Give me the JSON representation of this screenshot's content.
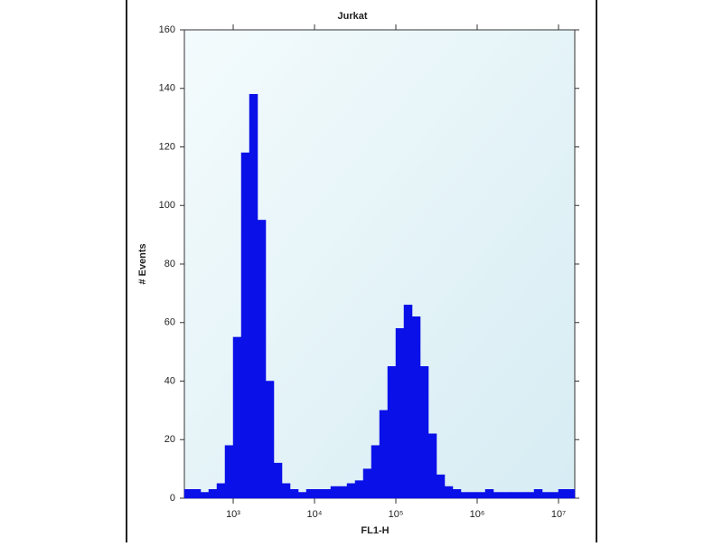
{
  "chart_data": {
    "type": "histogram",
    "title": "Jurkat",
    "x_label": "FL1-H",
    "y_label": "# Events",
    "xscale": "log",
    "color": "#0a10e8",
    "bins": [
      251,
      316,
      398,
      501,
      631,
      794,
      1000,
      1259,
      1585,
      1995,
      2512,
      3162,
      3981,
      5012,
      6310,
      7943,
      10000,
      12589,
      15849,
      19953,
      25119,
      31623,
      39811,
      50119,
      63096,
      79433,
      100000,
      125893,
      158489,
      199526,
      251189,
      316228,
      398107,
      501187,
      630957,
      794328,
      1000000,
      1258925,
      1584893,
      1995262,
      2511886,
      3162278,
      3981072,
      5011872,
      6309573,
      7943282,
      10000000,
      12589254,
      15848932
    ],
    "counts": [
      3,
      3,
      2,
      3,
      5,
      18,
      55,
      118,
      138,
      95,
      40,
      12,
      5,
      3,
      2,
      3,
      3,
      3,
      4,
      4,
      5,
      6,
      10,
      18,
      30,
      45,
      58,
      66,
      62,
      45,
      22,
      8,
      4,
      3,
      2,
      2,
      2,
      3,
      2,
      2,
      2,
      2,
      2,
      3,
      2,
      2,
      3,
      3
    ],
    "xlim": [
      251,
      15848932
    ],
    "xticks": [
      {
        "value": 1000,
        "label": "10³"
      },
      {
        "value": 10000,
        "label": "10⁴"
      },
      {
        "value": 100000,
        "label": "10⁵"
      },
      {
        "value": 1000000,
        "label": "10⁶"
      },
      {
        "value": 10000000,
        "label": "10⁷"
      }
    ],
    "ylim": [
      0,
      160
    ],
    "yticks": [
      0,
      20,
      40,
      60,
      80,
      100,
      120,
      140,
      160
    ]
  }
}
